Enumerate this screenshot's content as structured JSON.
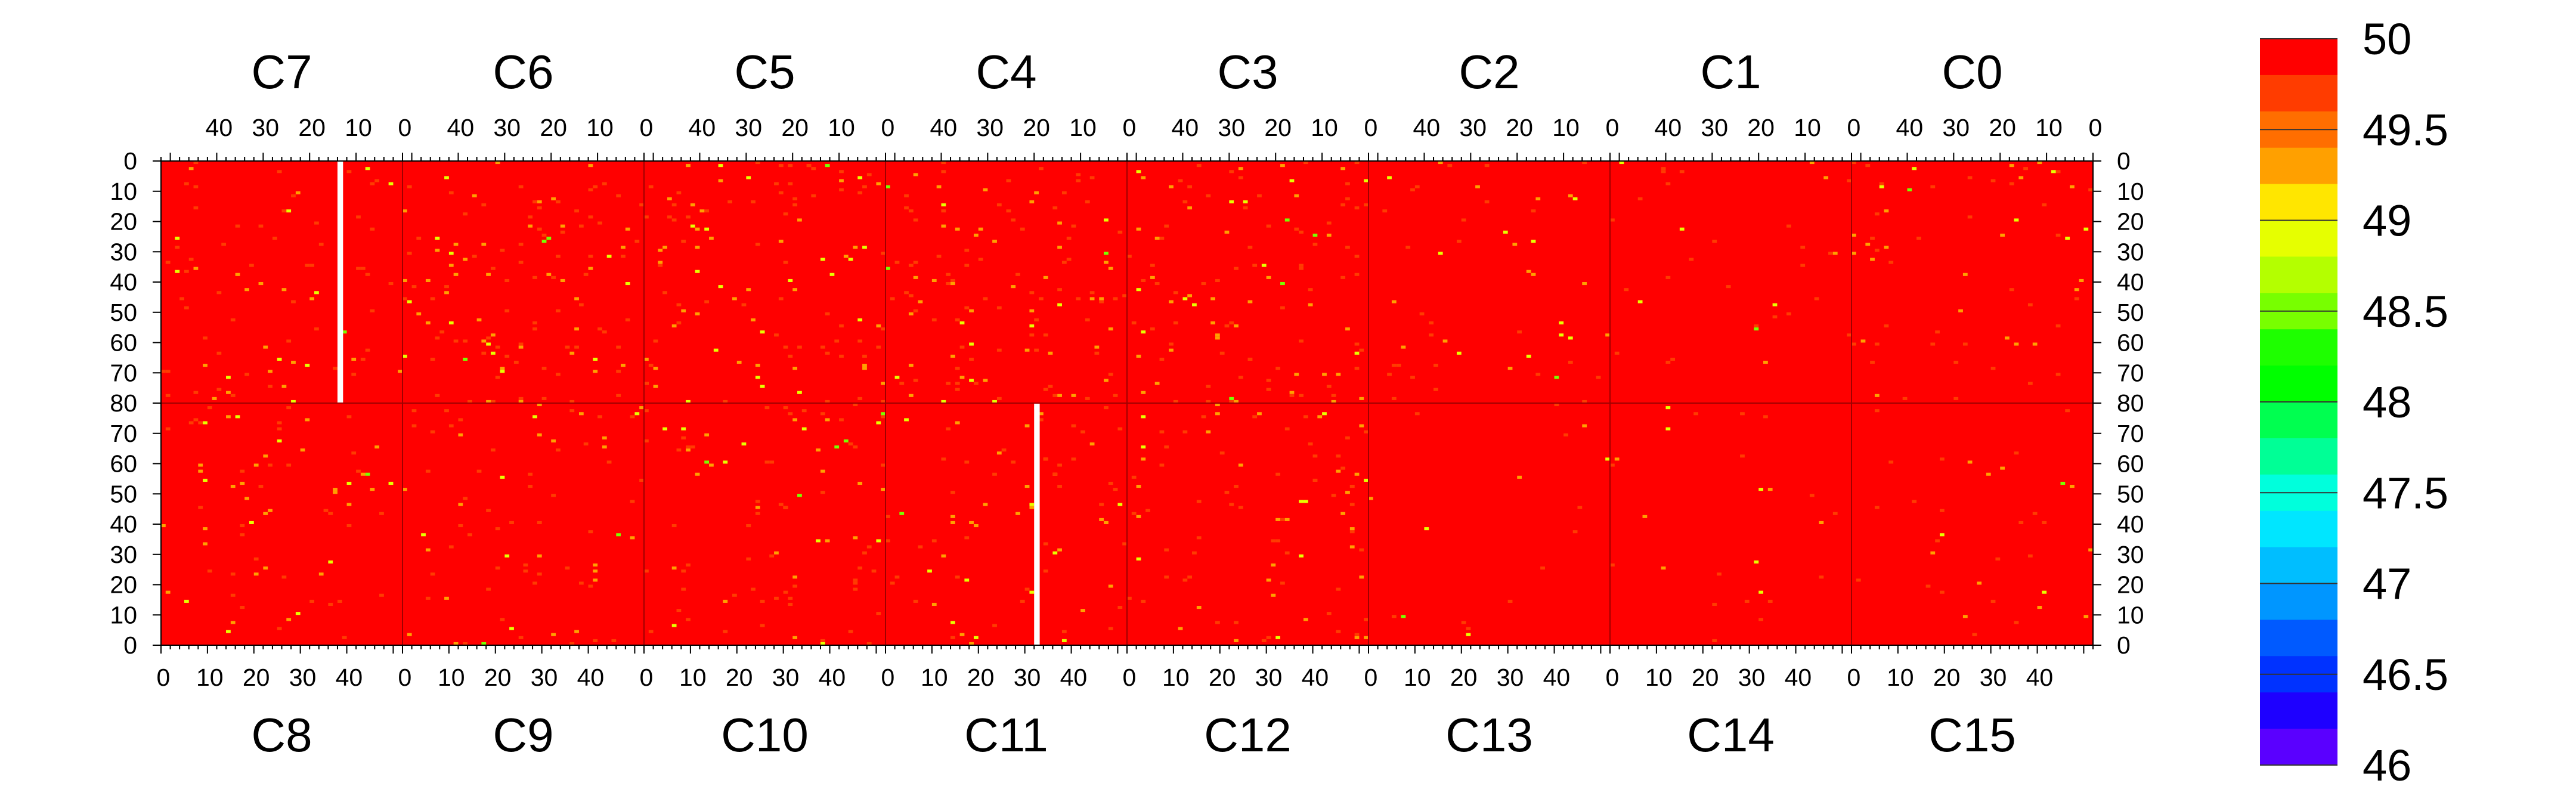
{
  "chart_data": {
    "type": "heatmap",
    "top_chip_labels": [
      "C7",
      "C6",
      "C5",
      "C4",
      "C3",
      "C2",
      "C1",
      "C0"
    ],
    "bottom_chip_labels": [
      "C8",
      "C9",
      "C10",
      "C11",
      "C12",
      "C13",
      "C14",
      "C15"
    ],
    "top_x_tick_labels": [
      "40",
      "30",
      "20",
      "10",
      "0"
    ],
    "bottom_x_tick_labels": [
      "0",
      "10",
      "20",
      "30",
      "40"
    ],
    "left_y_tick_labels_top_half": [
      "0",
      "10",
      "20",
      "30",
      "40",
      "50",
      "60",
      "70",
      "80"
    ],
    "left_y_tick_labels_bottom_half": [
      "70",
      "60",
      "50",
      "40",
      "30",
      "20",
      "10",
      "0"
    ],
    "columns_per_chip": 52,
    "rows_per_half": 80,
    "z_range": [
      46,
      50
    ],
    "colorbar": {
      "tick_labels": [
        "50",
        "49.5",
        "49",
        "48.5",
        "48",
        "47.5",
        "47",
        "46.5",
        "46"
      ],
      "tick_values": [
        50,
        49.5,
        49,
        48.5,
        48,
        47.5,
        47,
        46.5,
        46
      ],
      "band_colors": [
        "#ff0000",
        "#ff3c00",
        "#ff6e00",
        "#ffa000",
        "#ffe600",
        "#e6ff00",
        "#b4ff00",
        "#78ff00",
        "#1eff00",
        "#00ff00",
        "#00ff50",
        "#00ff96",
        "#00ffdc",
        "#00e6ff",
        "#00beff",
        "#0096ff",
        "#005aff",
        "#0032ff",
        "#1e00ff",
        "#5a00ff"
      ]
    },
    "background_value": 50,
    "dead_columns": [
      {
        "chip": "C7",
        "column": 13,
        "rows": "all"
      },
      {
        "chip": "C11",
        "column": 32,
        "rows": "all"
      }
    ],
    "pixel_density": [
      {
        "chip": "C7",
        "lowered_pixel_fraction": 0.02
      },
      {
        "chip": "C6",
        "lowered_pixel_fraction": 0.03
      },
      {
        "chip": "C5",
        "lowered_pixel_fraction": 0.028
      },
      {
        "chip": "C4",
        "lowered_pixel_fraction": 0.03
      },
      {
        "chip": "C3",
        "lowered_pixel_fraction": 0.028
      },
      {
        "chip": "C2",
        "lowered_pixel_fraction": 0.012
      },
      {
        "chip": "C1",
        "lowered_pixel_fraction": 0.008
      },
      {
        "chip": "C0",
        "lowered_pixel_fraction": 0.015
      },
      {
        "chip": "C8",
        "lowered_pixel_fraction": 0.018
      },
      {
        "chip": "C9",
        "lowered_pixel_fraction": 0.018
      },
      {
        "chip": "C10",
        "lowered_pixel_fraction": 0.022
      },
      {
        "chip": "C11",
        "lowered_pixel_fraction": 0.018
      },
      {
        "chip": "C12",
        "lowered_pixel_fraction": 0.022
      },
      {
        "chip": "C13",
        "lowered_pixel_fraction": 0.004
      },
      {
        "chip": "C14",
        "lowered_pixel_fraction": 0.006
      },
      {
        "chip": "C15",
        "lowered_pixel_fraction": 0.008
      }
    ],
    "pixel_value_distribution": [
      {
        "value": 49.6,
        "weight": 0.55
      },
      {
        "value": 49.3,
        "weight": 0.3
      },
      {
        "value": 49.0,
        "weight": 0.12
      },
      {
        "value": 48.5,
        "weight": 0.03
      }
    ]
  }
}
